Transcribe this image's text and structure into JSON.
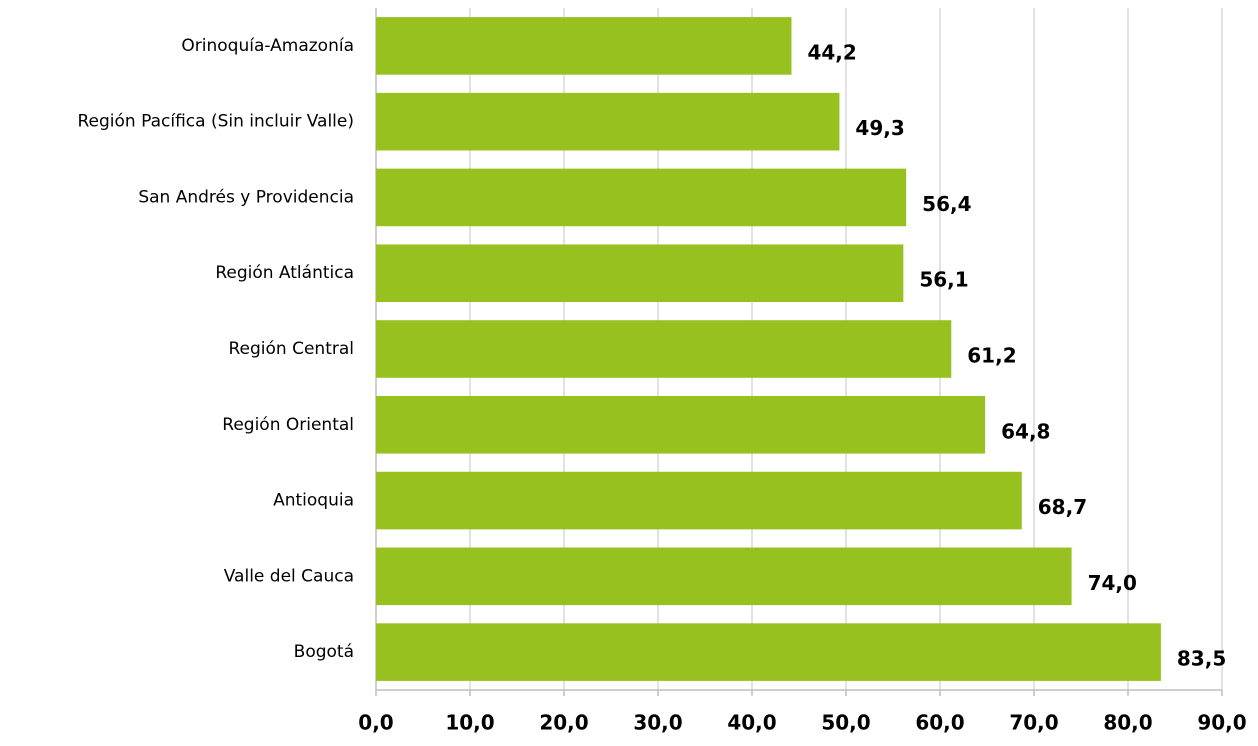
{
  "chart_data": {
    "type": "bar",
    "orientation": "horizontal",
    "categories": [
      "Orinoquía-Amazonía",
      "Región Pacífica (Sin incluir Valle)",
      "San Andrés y Providencia",
      "Región Atlántica",
      "Región Central",
      "Región Oriental",
      "Antioquia",
      "Valle del Cauca",
      "Bogotá"
    ],
    "values": [
      44.2,
      49.3,
      56.4,
      56.1,
      61.2,
      64.8,
      68.7,
      74.0,
      83.5
    ],
    "value_labels": [
      "44,2",
      "49,3",
      "56,4",
      "56,1",
      "61,2",
      "64,8",
      "68,7",
      "74,0",
      "83,5"
    ],
    "color": "#96c11f",
    "xlim": [
      0,
      90
    ],
    "xticks": [
      {
        "value": 0,
        "label": "0,0"
      },
      {
        "value": 10,
        "label": "10,0"
      },
      {
        "value": 20,
        "label": "20,0"
      },
      {
        "value": 30,
        "label": "30,0"
      },
      {
        "value": 40,
        "label": "40,0"
      },
      {
        "value": 50,
        "label": "50,0"
      },
      {
        "value": 60,
        "label": "60,0"
      },
      {
        "value": 70,
        "label": "70,0"
      },
      {
        "value": 80,
        "label": "80,0"
      },
      {
        "value": 90,
        "label": "90,0"
      }
    ],
    "grid": true
  }
}
